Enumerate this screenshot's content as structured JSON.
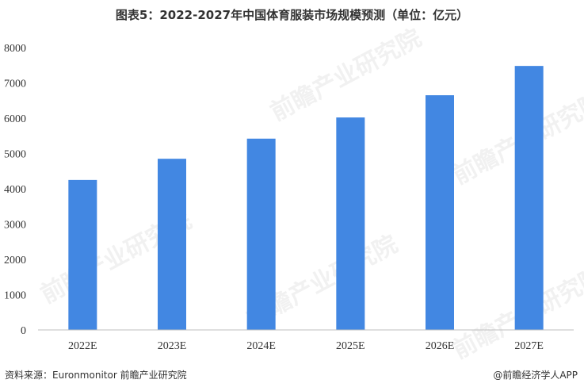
{
  "title": "图表5：2022-2027年中国体育服装市场规模预测（单位：亿元）",
  "source": "资料来源：Euronmonitor 前瞻产业研究院",
  "brand": "@前瞻经济学人APP",
  "watermark": "前瞻产业研究院",
  "colors": {
    "bar": "#4287e2",
    "axis": "#bfbfbf"
  },
  "chart_data": {
    "type": "bar",
    "title": "图表5：2022-2027年中国体育服装市场规模预测（单位：亿元）",
    "xlabel": "",
    "ylabel": "",
    "categories": [
      "2022E",
      "2023E",
      "2024E",
      "2025E",
      "2026E",
      "2027E"
    ],
    "values": [
      4250,
      4850,
      5420,
      6020,
      6650,
      7480
    ],
    "ylim": [
      0,
      8000
    ],
    "yticks": [
      0,
      1000,
      2000,
      3000,
      4000,
      5000,
      6000,
      7000,
      8000
    ],
    "grid": false,
    "legend": "none"
  }
}
